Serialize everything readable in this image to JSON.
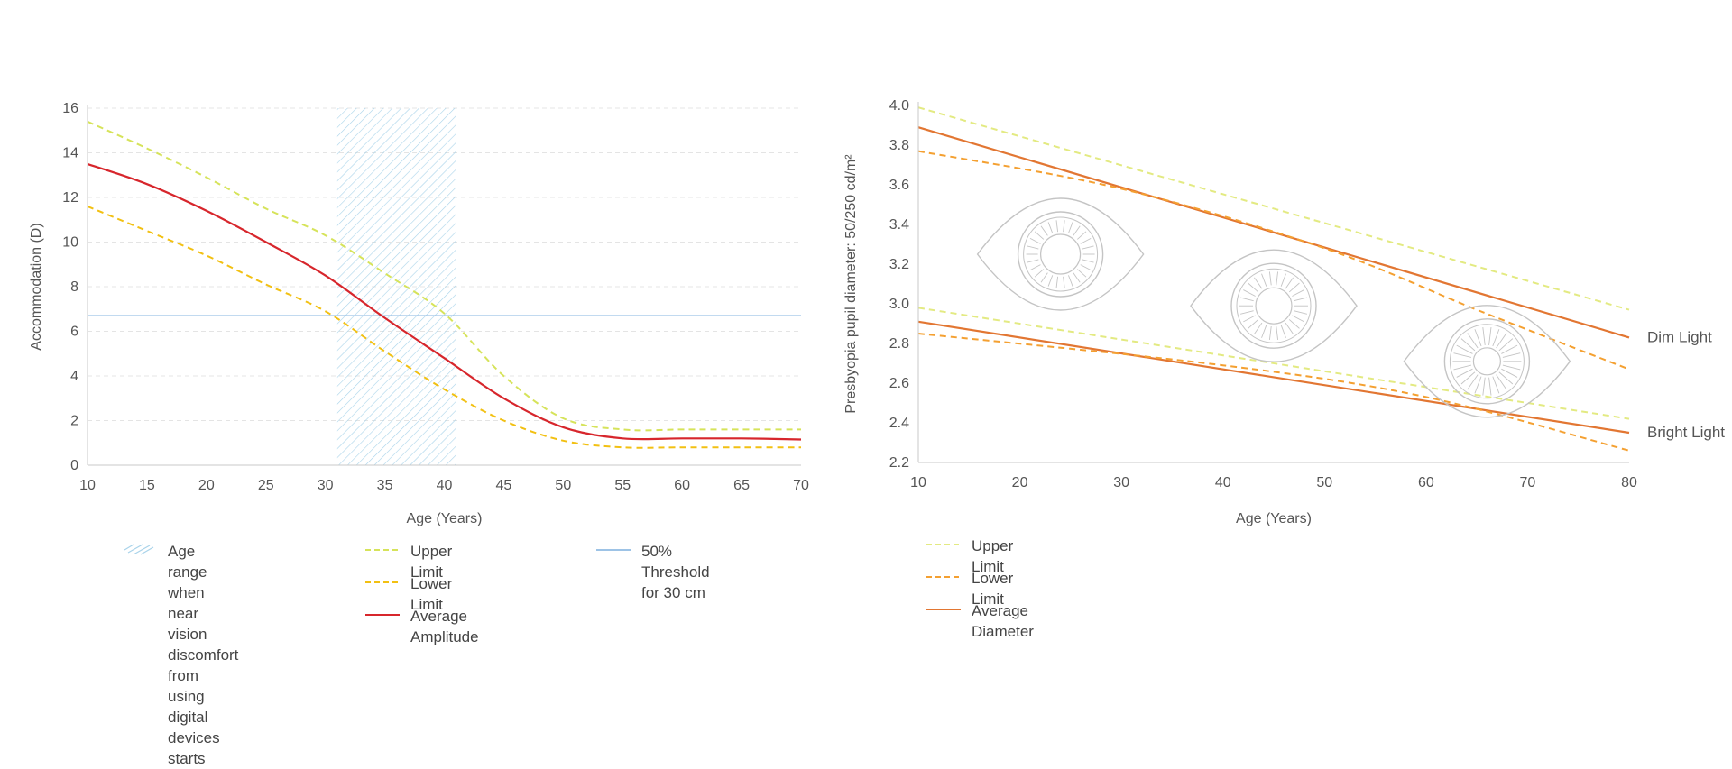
{
  "chart_data": [
    {
      "type": "line",
      "xlabel": "Age (Years)",
      "ylabel": "Accommodation (D)",
      "xlim": [
        10,
        70
      ],
      "ylim": [
        0,
        16
      ],
      "x_ticks": [
        10,
        15,
        20,
        25,
        30,
        35,
        40,
        45,
        50,
        55,
        60,
        65,
        70
      ],
      "y_ticks": [
        0,
        2,
        4,
        6,
        8,
        10,
        12,
        14,
        16
      ],
      "grid": "horizontal dashed",
      "shaded_range": {
        "x": [
          31,
          41
        ],
        "label": "Age range when near\nvision discomfort\nfrom using digital\ndevices starts",
        "color": "#a9d3ea"
      },
      "threshold": {
        "y": 6.7,
        "label": "50% Threshold\nfor 30 cm",
        "color": "#9dc3e6"
      },
      "series": [
        {
          "name": "Upper Limit",
          "style": "dashed",
          "color": "#d6e35a",
          "x": [
            10,
            15,
            20,
            25,
            30,
            35,
            40,
            45,
            50,
            55,
            60,
            65,
            70
          ],
          "y": [
            15.4,
            14.2,
            12.9,
            11.5,
            10.3,
            8.6,
            6.8,
            4.0,
            2.1,
            1.6,
            1.6,
            1.6,
            1.6
          ]
        },
        {
          "name": "Lower Limit",
          "style": "dashed",
          "color": "#f2c012",
          "x": [
            10,
            15,
            20,
            25,
            30,
            35,
            40,
            45,
            50,
            55,
            60,
            65,
            70
          ],
          "y": [
            11.6,
            10.5,
            9.4,
            8.1,
            6.9,
            5.1,
            3.4,
            2.0,
            1.1,
            0.8,
            0.8,
            0.8,
            0.8
          ]
        },
        {
          "name": "Average Amplitude",
          "style": "solid",
          "color": "#d7262c",
          "x": [
            10,
            15,
            20,
            25,
            30,
            35,
            40,
            45,
            50,
            55,
            60,
            65,
            70
          ],
          "y": [
            13.5,
            12.6,
            11.4,
            10.0,
            8.5,
            6.6,
            4.8,
            3.0,
            1.7,
            1.2,
            1.2,
            1.2,
            1.15
          ]
        }
      ],
      "legend_position": "bottom"
    },
    {
      "type": "line",
      "xlabel": "Age (Years)",
      "ylabel": "Presbyopia pupil diameter: 50/250 cd/m²",
      "xlim": [
        10,
        80
      ],
      "ylim": [
        2.2,
        4.0
      ],
      "x_ticks": [
        10,
        20,
        30,
        40,
        50,
        60,
        70,
        80
      ],
      "y_ticks": [
        2.2,
        2.4,
        2.6,
        2.8,
        3.0,
        3.2,
        3.4,
        3.6,
        3.8,
        4.0
      ],
      "grid": "off",
      "groups": [
        "Dim Light",
        "Bright Light"
      ],
      "series": [
        {
          "name": "Upper Limit",
          "group": "Dim Light",
          "style": "dashed",
          "color": "#e3ea82",
          "x": [
            10,
            80
          ],
          "y": [
            3.99,
            2.97
          ]
        },
        {
          "name": "Average Diameter",
          "group": "Dim Light",
          "style": "solid",
          "color": "#e27632",
          "x": [
            10,
            80
          ],
          "y": [
            3.89,
            2.83
          ]
        },
        {
          "name": "Lower Limit",
          "group": "Dim Light",
          "style": "dashed",
          "color": "#f4a031",
          "x": [
            10,
            30,
            50,
            65,
            80
          ],
          "y": [
            3.77,
            3.58,
            3.28,
            2.97,
            2.67
          ]
        },
        {
          "name": "Upper Limit",
          "group": "Bright Light",
          "style": "dashed",
          "color": "#e3ea82",
          "x": [
            10,
            80
          ],
          "y": [
            2.98,
            2.42
          ]
        },
        {
          "name": "Average Diameter",
          "group": "Bright Light",
          "style": "solid",
          "color": "#e27632",
          "x": [
            10,
            80
          ],
          "y": [
            2.91,
            2.35
          ]
        },
        {
          "name": "Lower Limit",
          "group": "Bright Light",
          "style": "dashed",
          "color": "#f4a031",
          "x": [
            10,
            40,
            60,
            80
          ],
          "y": [
            2.85,
            2.69,
            2.53,
            2.26
          ]
        }
      ],
      "illustrations": [
        {
          "icon": "eye-icon",
          "pupil": "large",
          "at_age": 24,
          "at_value": 3.25
        },
        {
          "icon": "eye-icon",
          "pupil": "medium",
          "at_age": 45,
          "at_value": 2.99
        },
        {
          "icon": "eye-icon",
          "pupil": "small",
          "at_age": 66,
          "at_value": 2.71
        }
      ],
      "legend_position": "bottom-left"
    }
  ],
  "legend_left": [
    {
      "key": "range",
      "label": "Age range when near\nvision discomfort\nfrom using digital\ndevices starts"
    },
    {
      "key": "upper",
      "label": "Upper Limit"
    },
    {
      "key": "lower",
      "label": "Lower Limit"
    },
    {
      "key": "average",
      "label": "Average Amplitude"
    },
    {
      "key": "threshold",
      "label": "50% Threshold\nfor 30 cm"
    }
  ],
  "legend_right": [
    {
      "key": "upper",
      "label": "Upper Limit"
    },
    {
      "key": "lower",
      "label": "Lower Limit"
    },
    {
      "key": "average",
      "label": "Average Diameter"
    }
  ],
  "colors": {
    "axis": "#c8c8c8",
    "grid": "#e4e4e4",
    "text": "#555555",
    "eye_outline": "#c4c4c4"
  }
}
